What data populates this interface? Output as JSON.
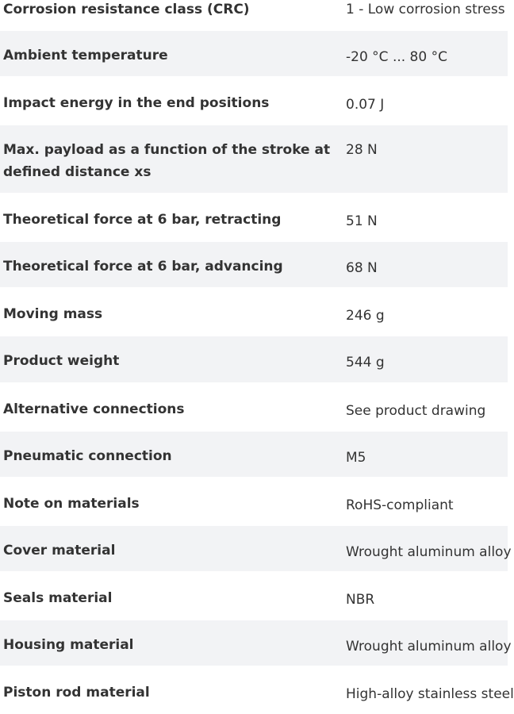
{
  "specs": [
    {
      "label": "Corrosion resistance class (CRC)",
      "value": "1 - Low corrosion stress"
    },
    {
      "label": "Ambient temperature",
      "value": "-20 °C ... 80 °C"
    },
    {
      "label": "Impact energy in the end positions",
      "value": "0.07 J"
    },
    {
      "label": "Max. payload as a function of the stroke at defined distance xs",
      "value": "28 N"
    },
    {
      "label": "Theoretical force at 6 bar, retracting",
      "value": "51 N"
    },
    {
      "label": "Theoretical force at 6 bar, advancing",
      "value": "68 N"
    },
    {
      "label": "Moving mass",
      "value": "246 g"
    },
    {
      "label": "Product weight",
      "value": "544 g"
    },
    {
      "label": "Alternative connections",
      "value": "See product drawing"
    },
    {
      "label": "Pneumatic connection",
      "value": "M5"
    },
    {
      "label": "Note on materials",
      "value": "RoHS-compliant"
    },
    {
      "label": "Cover material",
      "value": "Wrought aluminum alloy"
    },
    {
      "label": "Seals material",
      "value": "NBR"
    },
    {
      "label": "Housing material",
      "value": "Wrought aluminum alloy"
    },
    {
      "label": "Piston rod material",
      "value": "High-alloy stainless steel"
    }
  ]
}
